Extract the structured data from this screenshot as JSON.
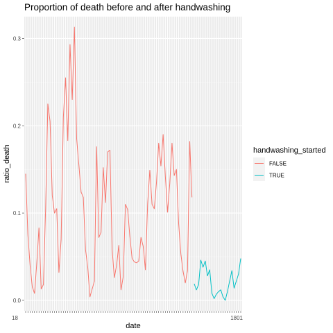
{
  "chart_data": {
    "type": "line",
    "title": "Proportion of death before and after handwashing",
    "xlabel": "date",
    "ylabel": "ratio_death",
    "ylim": [
      -0.012,
      0.325
    ],
    "y_ticks": [
      0.0,
      0.1,
      0.2,
      0.3
    ],
    "y_tick_labels": [
      "0.0",
      "0.1",
      "0.2",
      "0.3"
    ],
    "x_tick_text_left": "18",
    "x_tick_text_right": "1801",
    "grid": true,
    "legend": {
      "title": "handwashing_started",
      "placement": "right",
      "entries": [
        {
          "label": "FALSE",
          "color": "#F8766D"
        },
        {
          "label": "TRUE",
          "color": "#00BFC4"
        }
      ]
    },
    "series": [
      {
        "name": "FALSE",
        "color": "#F8766D",
        "values": [
          0.145,
          0.075,
          0.04,
          0.015,
          0.008,
          0.042,
          0.083,
          0.013,
          0.018,
          0.105,
          0.225,
          0.205,
          0.12,
          0.1,
          0.105,
          0.032,
          0.07,
          0.21,
          0.255,
          0.183,
          0.293,
          0.23,
          0.313,
          0.185,
          0.155,
          0.124,
          0.118,
          0.058,
          0.038,
          0.004,
          0.013,
          0.022,
          0.176,
          0.072,
          0.078,
          0.152,
          0.112,
          0.17,
          0.172,
          0.058,
          0.026,
          0.04,
          0.063,
          0.012,
          0.027,
          0.11,
          0.104,
          0.073,
          0.048,
          0.044,
          0.043,
          0.045,
          0.072,
          0.062,
          0.035,
          0.11,
          0.149,
          0.11,
          0.105,
          0.135,
          0.18,
          0.154,
          0.19,
          0.142,
          0.101,
          0.134,
          0.18,
          0.143,
          0.15,
          0.088,
          0.053,
          0.033,
          0.02,
          0.034,
          0.182,
          0.118
        ]
      },
      {
        "name": "TRUE",
        "color": "#00BFC4",
        "values": [
          0.019,
          0.012,
          0.018,
          0.046,
          0.038,
          0.045,
          0.028,
          0.035,
          0.008,
          0.002,
          0.007,
          0.01,
          0.012,
          0.004,
          0.0,
          0.01,
          0.022,
          0.034,
          0.014,
          0.022,
          0.03,
          0.048
        ]
      }
    ]
  }
}
